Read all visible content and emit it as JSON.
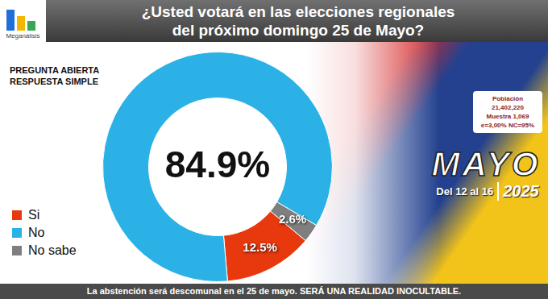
{
  "chart_data": {
    "type": "doughnut",
    "title": [
      "¿Usted votará en las elecciones regionales",
      "del próximo domingo 25 de Mayo?"
    ],
    "categories": [
      "Si",
      "No",
      "No sabe"
    ],
    "values": [
      12.5,
      84.9,
      2.6
    ],
    "value_labels": [
      "12.5%",
      "84.9%",
      "2.6%"
    ],
    "colors": [
      "#e8380d",
      "#2cb1e6",
      "#7f7f7f"
    ],
    "data_labels": true,
    "legend": "bottom-left"
  },
  "logo": "Meganálisis",
  "question_type": [
    "PREGUNTA ABIERTA",
    "RESPUESTA SIMPLE"
  ],
  "sample": [
    "Población",
    "21,402,220",
    "Muestra 1,069",
    "e=3,00%  NC=95%"
  ],
  "period": {
    "month": "MAYO",
    "days": "Del 12 al 16",
    "year": "2025"
  },
  "footer": "La abstención será descomunal en el 25 de mayo. SERÁ UNA REALIDAD INOCULTABLE."
}
